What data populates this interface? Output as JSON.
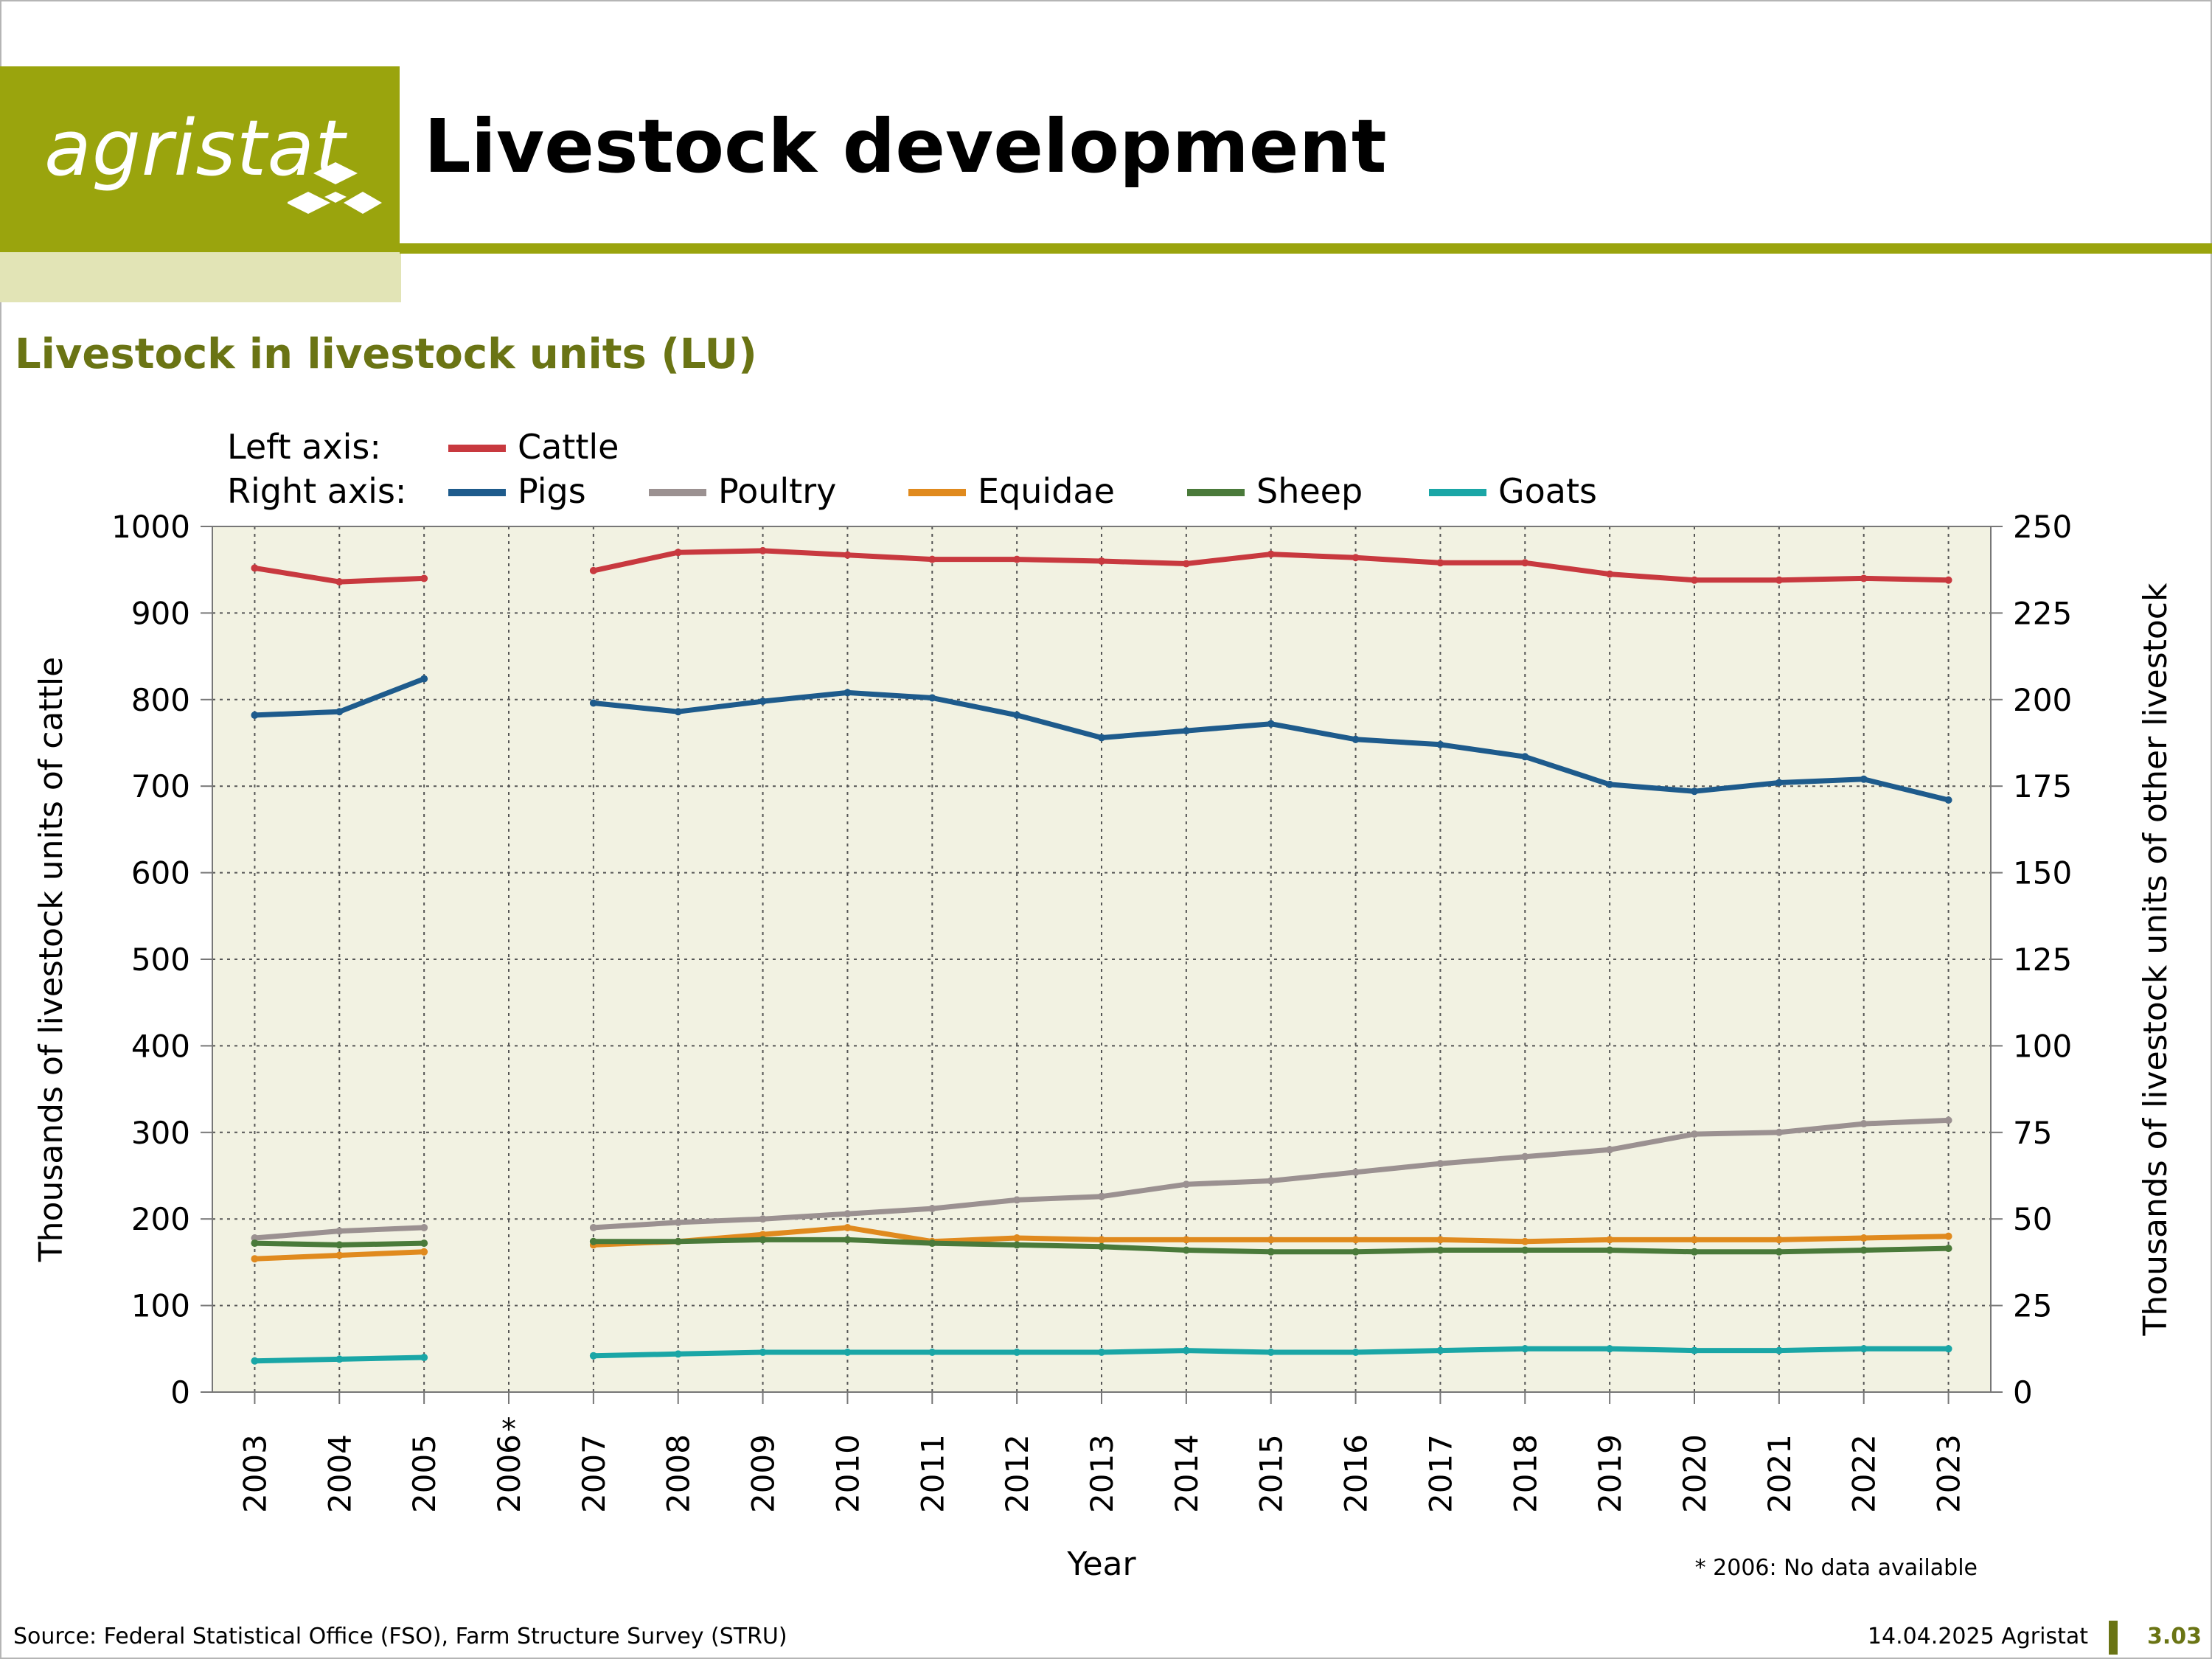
{
  "header": {
    "logo_text": "agristat",
    "title": "Livestock development"
  },
  "subtitle": "Livestock in livestock units (LU)",
  "footer": {
    "source": "Source: Federal Statistical Office (FSO), Farm Structure Survey (STRU)",
    "date": "14.04.2025 Agristat",
    "page": "3.03"
  },
  "colors": {
    "brand": "#9aa40d",
    "brand_light": "#e2e4b6",
    "brand_dark": "#6a7414",
    "plot_bg": "#f2f2e2"
  },
  "chart_data": {
    "type": "line",
    "title": "",
    "xlabel": "Year",
    "ylabel": "Thousands of livestock units of cattle",
    "y2label": "Thousands of livestock units of other livestock",
    "categories": [
      "2003",
      "2004",
      "2005",
      "2006",
      "2007",
      "2008",
      "2009",
      "2010",
      "2011",
      "2012",
      "2013",
      "2014",
      "2015",
      "2016",
      "2017",
      "2018",
      "2019",
      "2020",
      "2021",
      "2022",
      "2023"
    ],
    "category_marks": {
      "2006": "*"
    },
    "ylim": [
      0,
      1000
    ],
    "y2lim": [
      0,
      250
    ],
    "yticks": [
      0,
      100,
      200,
      300,
      400,
      500,
      600,
      700,
      800,
      900,
      1000
    ],
    "y2ticks": [
      0,
      25,
      50,
      75,
      100,
      125,
      150,
      175,
      200,
      225,
      250
    ],
    "grid": true,
    "legend": {
      "left_axis_label": "Left axis:",
      "right_axis_label": "Right axis:",
      "placement": "top"
    },
    "note": "* 2006: No data available",
    "series": [
      {
        "name": "Cattle",
        "axis": "left",
        "color": "#c8393f",
        "values": [
          952,
          936,
          940,
          null,
          949,
          970,
          972,
          967,
          962,
          962,
          960,
          957,
          968,
          964,
          958,
          958,
          945,
          938,
          938,
          940,
          938
        ]
      },
      {
        "name": "Pigs",
        "axis": "right",
        "color": "#1e5b8c",
        "values": [
          195.5,
          196.5,
          206,
          null,
          199,
          196.5,
          199.5,
          202,
          200.5,
          195.5,
          189,
          191,
          193,
          188.5,
          187,
          183.5,
          175.5,
          173.5,
          176,
          177,
          171
        ]
      },
      {
        "name": "Poultry",
        "axis": "right",
        "color": "#9b9191",
        "values": [
          44.5,
          46.5,
          47.5,
          null,
          47.5,
          49,
          50,
          51.5,
          53,
          55.5,
          56.5,
          60,
          61,
          63.5,
          66,
          68,
          70,
          74.5,
          75,
          77.5,
          78.5
        ]
      },
      {
        "name": "Equidae",
        "axis": "right",
        "color": "#e08a1e",
        "values": [
          38.5,
          39.5,
          40.5,
          null,
          42.5,
          43.5,
          45.5,
          47.5,
          43.5,
          44.5,
          44,
          44,
          44,
          44,
          44,
          43.5,
          44,
          44,
          44,
          44.5,
          45
        ]
      },
      {
        "name": "Sheep",
        "axis": "right",
        "color": "#4a7a3a",
        "values": [
          43,
          42.5,
          43,
          null,
          43.5,
          43.5,
          44,
          44,
          43,
          42.5,
          42,
          41,
          40.5,
          40.5,
          41,
          41,
          41,
          40.5,
          40.5,
          41,
          41.5
        ]
      },
      {
        "name": "Goats",
        "axis": "right",
        "color": "#1aa6a6",
        "values": [
          9,
          9.5,
          10,
          null,
          10.5,
          11,
          11.5,
          11.5,
          11.5,
          11.5,
          11.5,
          12,
          11.5,
          11.5,
          12,
          12.5,
          12.5,
          12,
          12,
          12.5,
          12.5
        ]
      }
    ]
  }
}
